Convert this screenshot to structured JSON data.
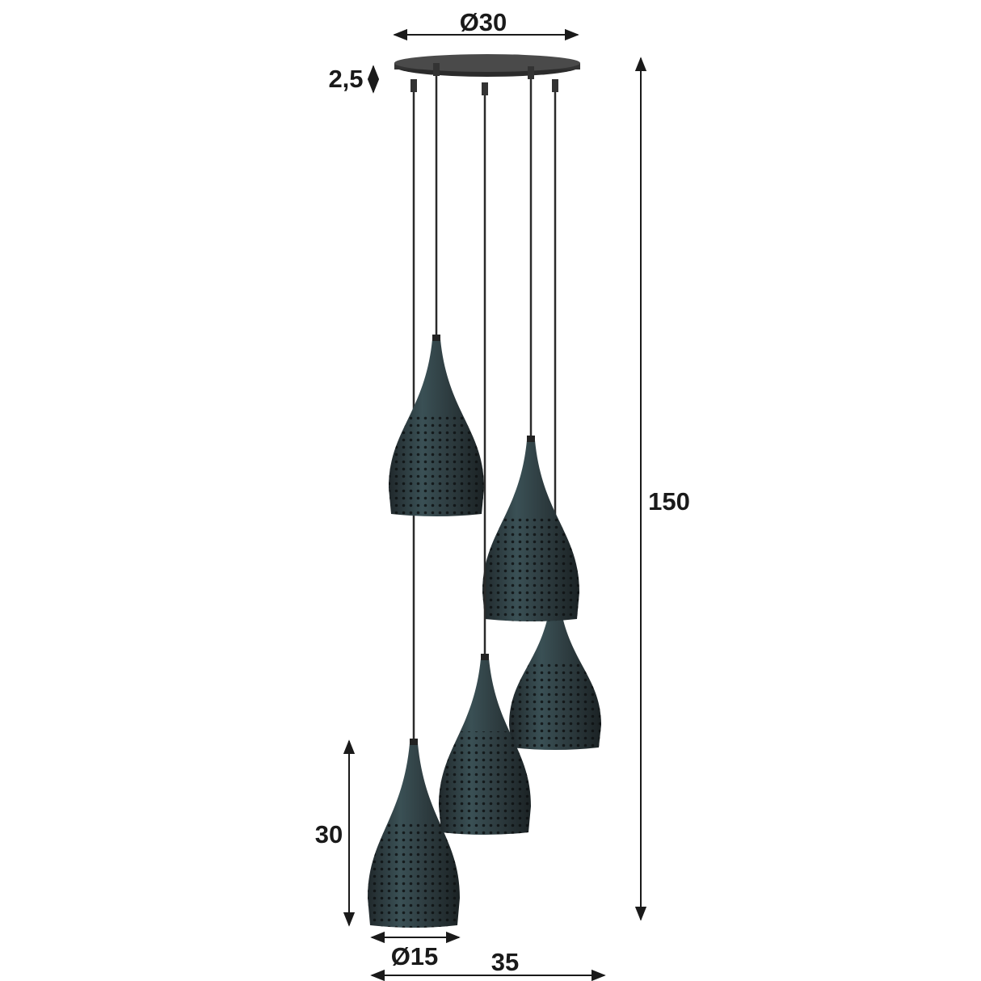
{
  "product": {
    "type": "pendant lamp, 5 teardrop shades",
    "shade_color": "#2c3b40",
    "accent_color": "#1f4a55"
  },
  "dimensions": {
    "canopy_diameter": "Ø30",
    "canopy_height": "2,5",
    "total_height": "150",
    "shade_height": "30",
    "shade_diameter": "Ø15",
    "total_width": "35"
  }
}
